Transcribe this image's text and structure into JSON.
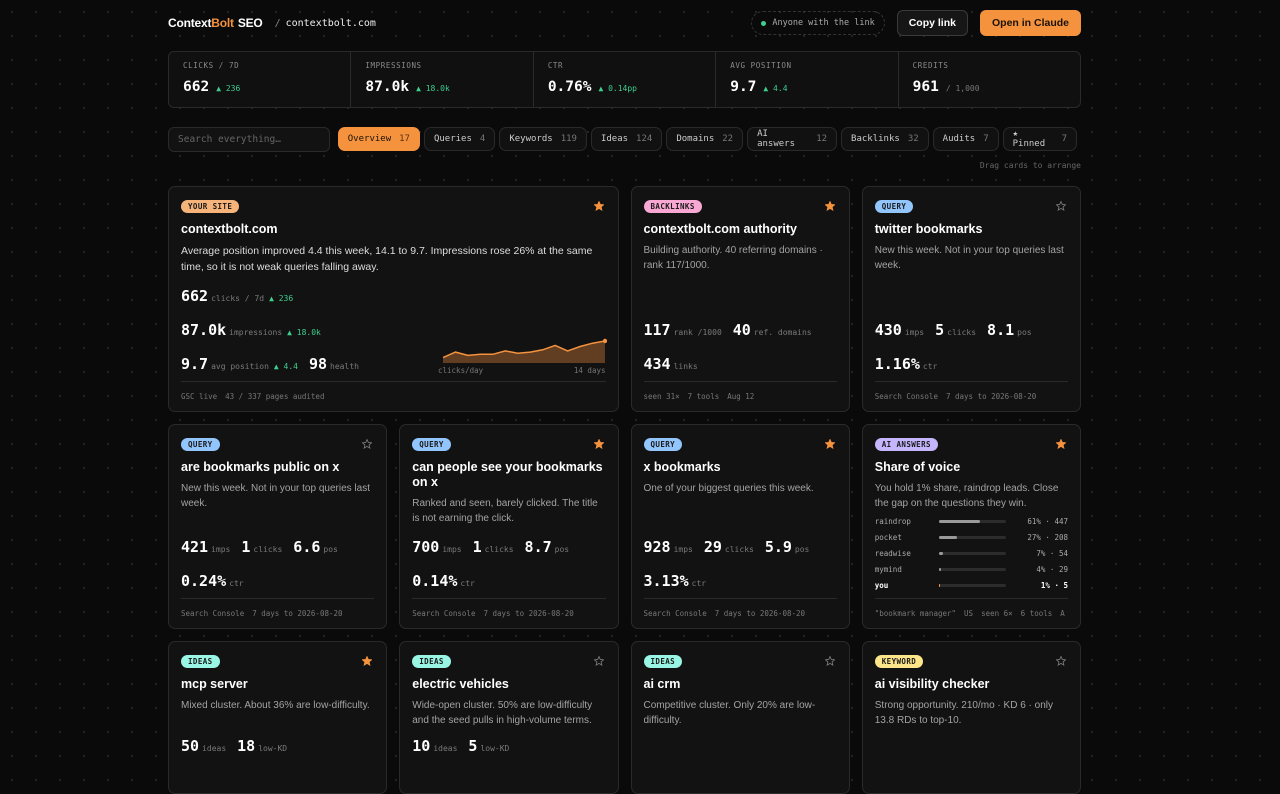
{
  "header": {
    "brand_prefix": "Context",
    "brand_accent": "Bolt",
    "brand_suffix": "SEO",
    "separator": "/",
    "site": "contextbolt.com",
    "share_status": "Anyone with the link",
    "copy_button": "Copy link",
    "open_button": "Open in Claude"
  },
  "stats": [
    {
      "label": "CLICKS / 7D",
      "value": "662",
      "delta": "▲ 236"
    },
    {
      "label": "IMPRESSIONS",
      "value": "87.0k",
      "delta": "▲ 18.0k"
    },
    {
      "label": "CTR",
      "value": "0.76%",
      "delta": "▲ 0.14pp"
    },
    {
      "label": "AVG POSITION",
      "value": "9.7",
      "delta": "▲ 4.4"
    },
    {
      "label": "CREDITS",
      "value": "961",
      "note": "/ 1,000"
    }
  ],
  "toolbar": {
    "search_placeholder": "Search everything…",
    "tabs": [
      {
        "label": "Overview",
        "count": 17,
        "active": true
      },
      {
        "label": "Queries",
        "count": 4
      },
      {
        "label": "Keywords",
        "count": 119
      },
      {
        "label": "Ideas",
        "count": 124
      },
      {
        "label": "Domains",
        "count": 22
      },
      {
        "label": "AI answers",
        "count": 12
      },
      {
        "label": "Backlinks",
        "count": 32
      },
      {
        "label": "Audits",
        "count": 7
      },
      {
        "label": "★ Pinned",
        "count": 7
      }
    ],
    "hint": "Drag cards to arrange"
  },
  "cards": [
    {
      "tag": "YOUR SITE",
      "tag_color": "#f7b47a",
      "pinned": true,
      "title": "contextbolt.com",
      "description": "Average position improved 4.4 this week, 14.1 to 9.7. Impressions rose 26% at the same time, so it is not weak queries falling away.",
      "metric_rows": [
        [
          {
            "value": "662",
            "unit": "clicks / 7d",
            "delta": "▲ 236"
          }
        ],
        [
          {
            "value": "87.0k",
            "unit": "impressions",
            "delta": "▲ 18.0k"
          }
        ],
        [
          {
            "value": "9.7",
            "unit": "avg position",
            "delta": "▲ 4.4"
          },
          {
            "value": "98",
            "unit": "health"
          }
        ]
      ],
      "sparkline": {
        "values": [
          4,
          9,
          6,
          7,
          7,
          10,
          8,
          9,
          11,
          15,
          10,
          14,
          17,
          19
        ],
        "color": "#f5923e",
        "x_label": "clicks/day",
        "range_label": "14 days"
      },
      "footer": [
        "GSC live",
        "43 / 337 pages audited"
      ]
    },
    {
      "tag": "BACKLINKS",
      "tag_color": "#f9a8d4",
      "pinned": true,
      "title": "contextbolt.com authority",
      "description": "Building authority. 40 referring domains · rank 117/1000.",
      "metric_rows": [
        [
          {
            "value": "117",
            "unit": "rank /1000"
          },
          {
            "value": "40",
            "unit": "ref. domains"
          }
        ],
        [
          {
            "value": "434",
            "unit": "links"
          }
        ]
      ],
      "footer": [
        "seen 31×",
        "7 tools",
        "Aug 12"
      ]
    },
    {
      "tag": "QUERY",
      "tag_color": "#93c5fd",
      "pinned": false,
      "title": "twitter bookmarks",
      "description": "New this week. Not in your top queries last week.",
      "metric_rows": [
        [
          {
            "value": "430",
            "unit": "imps"
          },
          {
            "value": "5",
            "unit": "clicks"
          },
          {
            "value": "8.1",
            "unit": "pos"
          }
        ],
        [
          {
            "value": "1.16%",
            "unit": "ctr"
          }
        ]
      ],
      "footer": [
        "Search Console",
        "7 days to 2026-08-20"
      ]
    },
    {
      "tag": "QUERY",
      "tag_color": "#93c5fd",
      "pinned": false,
      "title": "are bookmarks public on x",
      "description": "New this week. Not in your top queries last week.",
      "metric_rows": [
        [
          {
            "value": "421",
            "unit": "imps"
          },
          {
            "value": "1",
            "unit": "clicks"
          },
          {
            "value": "6.6",
            "unit": "pos"
          }
        ],
        [
          {
            "value": "0.24%",
            "unit": "ctr"
          }
        ]
      ],
      "footer": [
        "Search Console",
        "7 days to 2026-08-20"
      ]
    },
    {
      "tag": "QUERY",
      "tag_color": "#93c5fd",
      "pinned": true,
      "title": "can people see your bookmarks on x",
      "description": "Ranked and seen, barely clicked. The title is not earning the click.",
      "metric_rows": [
        [
          {
            "value": "700",
            "unit": "imps"
          },
          {
            "value": "1",
            "unit": "clicks"
          },
          {
            "value": "8.7",
            "unit": "pos"
          }
        ],
        [
          {
            "value": "0.14%",
            "unit": "ctr"
          }
        ]
      ],
      "footer": [
        "Search Console",
        "7 days to 2026-08-20"
      ]
    },
    {
      "tag": "QUERY",
      "tag_color": "#93c5fd",
      "pinned": true,
      "title": "x bookmarks",
      "description": "One of your biggest queries this week.",
      "metric_rows": [
        [
          {
            "value": "928",
            "unit": "imps"
          },
          {
            "value": "29",
            "unit": "clicks"
          },
          {
            "value": "5.9",
            "unit": "pos"
          }
        ],
        [
          {
            "value": "3.13%",
            "unit": "ctr"
          }
        ]
      ],
      "footer": [
        "Search Console",
        "7 days to 2026-08-20"
      ]
    },
    {
      "tag": "AI ANSWERS",
      "tag_color": "#c4b5fd",
      "pinned": true,
      "title": "Share of voice",
      "description": "You hold 1% share, raindrop leads. Close the gap on the questions they win.",
      "share_rows": [
        {
          "name": "raindrop",
          "share": 61,
          "label": "61% · 447"
        },
        {
          "name": "pocket",
          "share": 27,
          "label": "27% · 208"
        },
        {
          "name": "readwise",
          "share": 7,
          "label": "7% · 54"
        },
        {
          "name": "mymind",
          "share": 4,
          "label": "4% · 29"
        },
        {
          "name": "you",
          "share": 1,
          "label": "1% · 5",
          "highlight": true
        }
      ],
      "footer": [
        "\"bookmark manager\"",
        "US",
        "seen 6×",
        "6 tools",
        "A"
      ]
    },
    {
      "tag": "IDEAS",
      "tag_color": "#99f6e4",
      "pinned": true,
      "title": "mcp server",
      "description": "Mixed cluster. About 36% are low-difficulty.",
      "metric_rows": [
        [
          {
            "value": "50",
            "unit": "ideas"
          },
          {
            "value": "18",
            "unit": "low-KD"
          }
        ]
      ]
    },
    {
      "tag": "IDEAS",
      "tag_color": "#99f6e4",
      "pinned": false,
      "title": "electric vehicles",
      "description": "Wide-open cluster. 50% are low-difficulty and the seed pulls in high-volume terms.",
      "metric_rows": [
        [
          {
            "value": "10",
            "unit": "ideas"
          },
          {
            "value": "5",
            "unit": "low-KD"
          }
        ]
      ]
    },
    {
      "tag": "IDEAS",
      "tag_color": "#99f6e4",
      "pinned": false,
      "title": "ai crm",
      "description": "Competitive cluster. Only 20% are low-difficulty."
    },
    {
      "tag": "KEYWORD",
      "tag_color": "#fde68a",
      "pinned": false,
      "title": "ai visibility checker",
      "description": "Strong opportunity. 210/mo · KD 6 · only 13.8 RDs to top-10."
    }
  ]
}
